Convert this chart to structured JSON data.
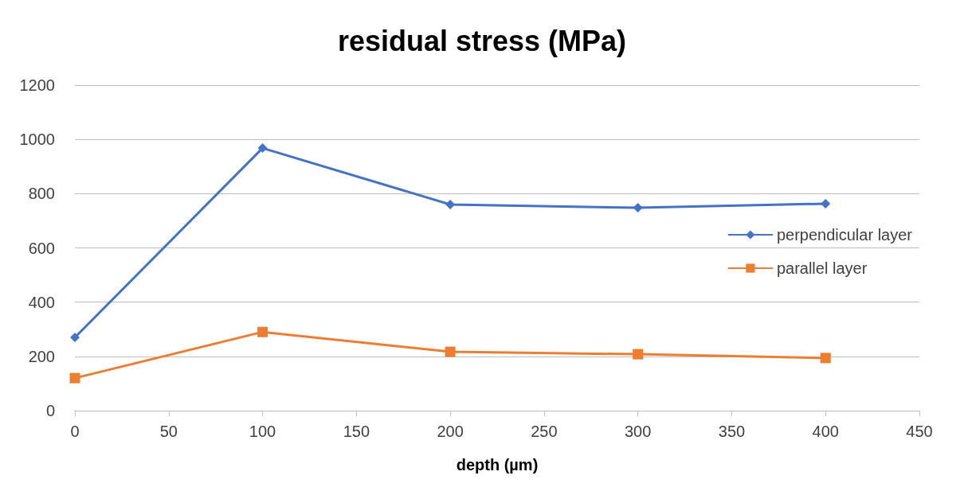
{
  "chart_data": {
    "type": "line",
    "title": "residual stress (MPa)",
    "xlabel": "depth (µm)",
    "x": [
      0,
      100,
      200,
      300,
      400
    ],
    "series": [
      {
        "name": "perpendicular layer",
        "color": "#4472c4",
        "marker": "diamond",
        "values": [
          270,
          968,
          760,
          748,
          763
        ]
      },
      {
        "name": "parallel layer",
        "color": "#ed7d31",
        "marker": "square",
        "values": [
          120,
          290,
          217,
          208,
          194
        ]
      }
    ],
    "xlim": [
      0,
      450
    ],
    "xticks": [
      0,
      50,
      100,
      150,
      200,
      250,
      300,
      350,
      400,
      450
    ],
    "ylim": [
      0,
      1200
    ],
    "yticks": [
      0,
      200,
      400,
      600,
      800,
      1000,
      1200
    ],
    "grid": "y",
    "legend": "right",
    "line_style": "solid"
  }
}
